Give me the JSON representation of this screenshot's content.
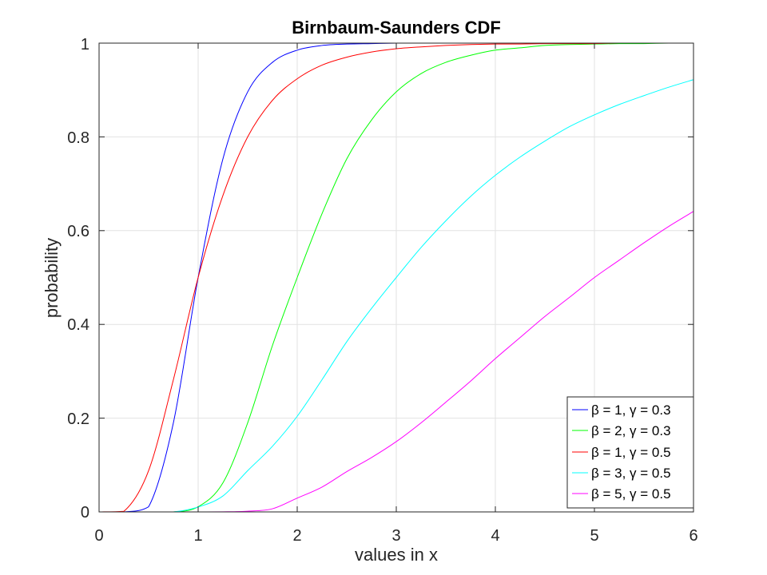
{
  "chart_data": {
    "type": "line",
    "title": "Birnbaum-Saunders CDF",
    "xlabel": "values in x",
    "ylabel": "probability",
    "xlim": [
      0,
      6
    ],
    "ylim": [
      0,
      1
    ],
    "x_ticks": [
      "0",
      "1",
      "2",
      "3",
      "4",
      "5",
      "6"
    ],
    "y_ticks": [
      "0",
      "0.2",
      "0.4",
      "0.6",
      "0.8",
      "1"
    ],
    "grid": true,
    "legend_position": "bottom-right",
    "x": [
      0,
      0.25,
      0.5,
      0.75,
      1,
      1.25,
      1.5,
      1.75,
      2,
      2.25,
      2.5,
      2.75,
      3,
      3.25,
      3.5,
      3.75,
      4,
      4.25,
      4.5,
      4.75,
      5,
      5.25,
      5.5,
      5.75,
      6
    ],
    "series": [
      {
        "name": "β = 1, γ = 0.3",
        "color": "#0000ff",
        "values": [
          0,
          0,
          0.011,
          0.19,
          0.5,
          0.753,
          0.896,
          0.959,
          0.985,
          0.995,
          0.998,
          0.999,
          1,
          1,
          1,
          1,
          1,
          1,
          1,
          1,
          1,
          1,
          1,
          1,
          1
        ]
      },
      {
        "name": "β = 2, γ = 0.3",
        "color": "#00ff00",
        "values": [
          0,
          0,
          0,
          0,
          0.011,
          0.062,
          0.19,
          0.355,
          0.5,
          0.636,
          0.753,
          0.836,
          0.896,
          0.935,
          0.959,
          0.974,
          0.985,
          0.99,
          0.995,
          0.997,
          0.998,
          0.999,
          0.999,
          1,
          1
        ]
      },
      {
        "name": "β = 1, γ = 0.5",
        "color": "#ff0000",
        "values": [
          0,
          0.0013,
          0.088,
          0.282,
          0.5,
          0.675,
          0.8,
          0.878,
          0.924,
          0.953,
          0.97,
          0.981,
          0.988,
          0.992,
          0.995,
          0.997,
          0.998,
          0.998,
          0.999,
          0.999,
          0.999,
          1,
          1,
          1,
          1
        ]
      },
      {
        "name": "β = 3, γ = 0.5",
        "color": "#00ffff",
        "values": [
          0,
          0,
          0,
          0,
          0.0105,
          0.034,
          0.088,
          0.14,
          0.204,
          0.282,
          0.363,
          0.434,
          0.5,
          0.564,
          0.621,
          0.673,
          0.718,
          0.757,
          0.791,
          0.822,
          0.847,
          0.869,
          0.888,
          0.906,
          0.922
        ]
      },
      {
        "name": "β = 5, γ = 0.5",
        "color": "#ff00ff",
        "values": [
          0,
          0,
          0,
          0,
          0,
          0.0002,
          0.0015,
          0.0067,
          0.0295,
          0.053,
          0.086,
          0.116,
          0.15,
          0.19,
          0.234,
          0.279,
          0.327,
          0.372,
          0.417,
          0.458,
          0.5,
          0.537,
          0.574,
          0.609,
          0.641
        ]
      }
    ]
  }
}
